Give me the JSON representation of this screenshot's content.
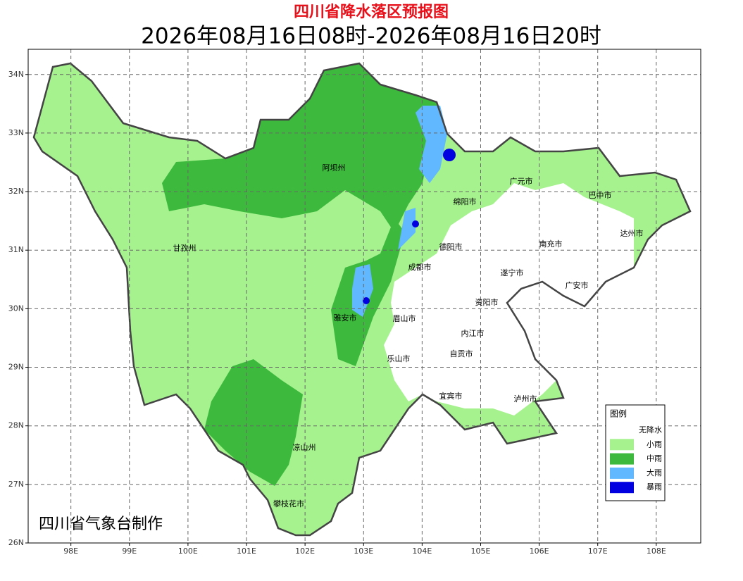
{
  "header": {
    "title": "四川省降水落区预报图",
    "subtitle": "2026年08月16日08时-2026年08月16日20时"
  },
  "map": {
    "xlim": [
      97.27,
      108.76
    ],
    "ylim": [
      26,
      34.43
    ],
    "xticks": [
      {
        "value": 98,
        "label": "98E"
      },
      {
        "value": 99,
        "label": "99E"
      },
      {
        "value": 100,
        "label": "100E"
      },
      {
        "value": 101,
        "label": "101E"
      },
      {
        "value": 102,
        "label": "102E"
      },
      {
        "value": 103,
        "label": "103E"
      },
      {
        "value": 104,
        "label": "104E"
      },
      {
        "value": 105,
        "label": "105E"
      },
      {
        "value": 106,
        "label": "106E"
      },
      {
        "value": 107,
        "label": "107E"
      },
      {
        "value": 108,
        "label": "108E"
      }
    ],
    "yticks": [
      {
        "value": 26,
        "label": "26N"
      },
      {
        "value": 27,
        "label": "27N"
      },
      {
        "value": 28,
        "label": "28N"
      },
      {
        "value": 29,
        "label": "29N"
      },
      {
        "value": 30,
        "label": "30N"
      },
      {
        "value": 31,
        "label": "31N"
      },
      {
        "value": 32,
        "label": "32N"
      },
      {
        "value": 33,
        "label": "33N"
      },
      {
        "value": 34,
        "label": "34N"
      }
    ],
    "grid": true,
    "cities": [
      "阿坝州",
      "广元市",
      "巴中市",
      "绵阳市",
      "达州市",
      "甘孜州",
      "德阳市",
      "南充市",
      "成都市",
      "遂宁市",
      "广安市",
      "资阳市",
      "雅安市",
      "眉山市",
      "内江市",
      "自贡市",
      "乐山市",
      "宜宾市",
      "泸州市",
      "凉山州",
      "攀枝花市"
    ]
  },
  "legend": {
    "title": "图例",
    "items": [
      {
        "label": "无降水",
        "color": "#ffffff"
      },
      {
        "label": "小雨",
        "color": "#a6f28f"
      },
      {
        "label": "中雨",
        "color": "#3dba3d"
      },
      {
        "label": "大雨",
        "color": "#61b8ff"
      },
      {
        "label": "暴雨",
        "color": "#0000e1"
      }
    ]
  },
  "credit": "四川省气象台制作"
}
